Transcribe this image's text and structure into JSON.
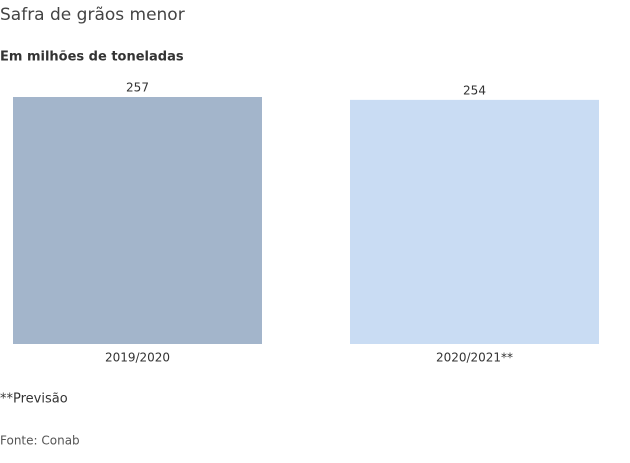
{
  "chart_data": {
    "type": "bar",
    "title": "Safra de grãos menor",
    "subtitle": "Em milhões de toneladas",
    "categories": [
      "2019/2020",
      "2020/2021**"
    ],
    "values": [
      257,
      254
    ],
    "colors": [
      "#a3b5cb",
      "#c9dcf3"
    ],
    "ylim": [
      0,
      257
    ],
    "note": "**Previsão",
    "source": "Fonte: Conab"
  }
}
